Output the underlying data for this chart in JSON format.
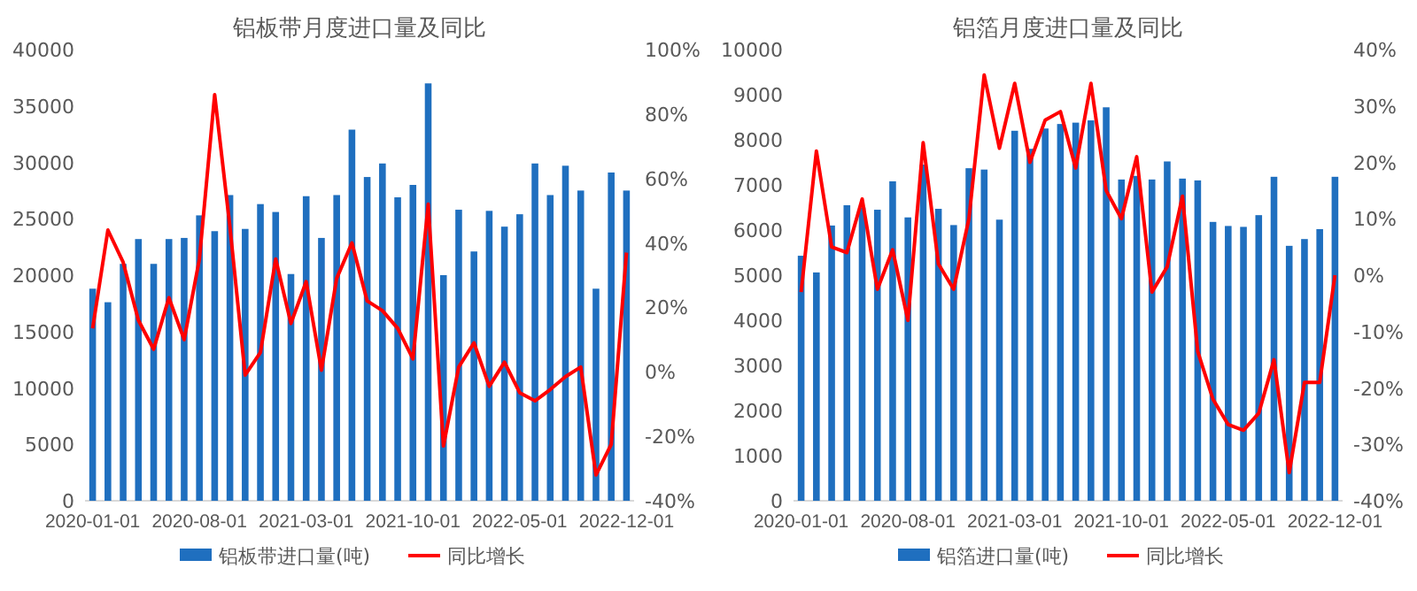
{
  "chart_data": [
    {
      "type": "bar",
      "title": "铝板带月度进口量及同比",
      "categories": [
        "2020-01-01",
        null,
        null,
        null,
        null,
        null,
        null,
        "2020-08-01",
        null,
        null,
        null,
        null,
        null,
        null,
        "2021-03-01",
        null,
        null,
        null,
        null,
        null,
        null,
        "2021-10-01",
        null,
        null,
        null,
        null,
        null,
        null,
        "2022-05-01",
        null,
        null,
        null,
        null,
        null,
        null,
        "2022-12-01"
      ],
      "series": [
        {
          "name": "铝板带进口量(吨)",
          "color": "#1f6fbf",
          "values": [
            18800,
            17600,
            21000,
            23200,
            21000,
            23200,
            23300,
            25300,
            23900,
            27100,
            24100,
            26300,
            25600,
            20100,
            27000,
            23300,
            27100,
            32900,
            28700,
            29900,
            26900,
            28000,
            37000,
            20000,
            25800,
            22100,
            25700,
            24300,
            25400,
            29900,
            27100,
            29700,
            27500,
            18800,
            29100,
            27500
          ]
        },
        {
          "name": "同比增长",
          "type": "line",
          "axis": "y2",
          "color": "#ff0000",
          "values": [
            13.5,
            44,
            34,
            16,
            7,
            23,
            10,
            35,
            86,
            45,
            -1,
            6,
            35,
            15,
            28,
            0.5,
            29,
            40,
            22,
            19,
            13.5,
            4,
            52,
            -23,
            1.5,
            9,
            -4.5,
            3,
            -6.5,
            -9,
            -5.5,
            -1.5,
            1.5,
            -32,
            -22.5,
            37
          ]
        }
      ],
      "ylim": [
        0,
        40000
      ],
      "yticks": [
        0,
        5000,
        10000,
        15000,
        20000,
        25000,
        30000,
        35000,
        40000
      ],
      "y2lim": [
        -40,
        100
      ],
      "y2ticks": [
        {
          "value": -40,
          "label": "-40%"
        },
        {
          "value": -20,
          "label": "-20%"
        },
        {
          "value": 0,
          "label": "0%"
        },
        {
          "value": 20,
          "label": "20%"
        },
        {
          "value": 40,
          "label": "40%"
        },
        {
          "value": 60,
          "label": "60%"
        },
        {
          "value": 80,
          "label": "80%"
        },
        {
          "value": 100,
          "label": "100%"
        }
      ],
      "legend": "bottom"
    },
    {
      "type": "bar",
      "title": "铝箔月度进口量及同比",
      "categories": [
        "2020-01-01",
        null,
        null,
        null,
        null,
        null,
        null,
        "2020-08-01",
        null,
        null,
        null,
        null,
        null,
        null,
        "2021-03-01",
        null,
        null,
        null,
        null,
        null,
        null,
        "2021-10-01",
        null,
        null,
        null,
        null,
        null,
        null,
        "2022-05-01",
        null,
        null,
        null,
        null,
        null,
        null,
        "2022-12-01"
      ],
      "series": [
        {
          "name": "铝箔进口量(吨)",
          "color": "#1f6fbf",
          "values": [
            5430,
            5060,
            6100,
            6550,
            6500,
            6450,
            7080,
            6280,
            7450,
            6470,
            6110,
            7370,
            7340,
            6230,
            8200,
            7800,
            8250,
            8350,
            8380,
            8430,
            8720,
            7120,
            7200,
            7120,
            7520,
            7140,
            7100,
            6180,
            6090,
            6070,
            6330,
            7180,
            5650,
            5800,
            6020,
            7180
          ]
        },
        {
          "name": "同比增长",
          "type": "line",
          "axis": "y2",
          "color": "#ff0000",
          "values": [
            -3,
            22,
            5,
            4,
            13.5,
            -2.5,
            4.5,
            -8,
            23.5,
            2,
            -2.5,
            10,
            35.5,
            22.5,
            34,
            20,
            27.5,
            29,
            19,
            34,
            15,
            10,
            21,
            -3,
            1.5,
            14,
            -13.5,
            -22,
            -26.5,
            -27.5,
            -24.5,
            -15,
            -35,
            -19,
            -19,
            0
          ]
        }
      ],
      "ylim": [
        0,
        10000
      ],
      "yticks": [
        0,
        1000,
        2000,
        3000,
        4000,
        5000,
        6000,
        7000,
        8000,
        9000,
        10000
      ],
      "y2lim": [
        -40,
        40
      ],
      "y2ticks": [
        {
          "value": -40,
          "label": "-40%"
        },
        {
          "value": -30,
          "label": "-30%"
        },
        {
          "value": -20,
          "label": "-20%"
        },
        {
          "value": -10,
          "label": "-10%"
        },
        {
          "value": 0,
          "label": "0%"
        },
        {
          "value": 10,
          "label": "10%"
        },
        {
          "value": 20,
          "label": "20%"
        },
        {
          "value": 30,
          "label": "30%"
        },
        {
          "value": 40,
          "label": "40%"
        }
      ],
      "legend": "bottom"
    }
  ]
}
